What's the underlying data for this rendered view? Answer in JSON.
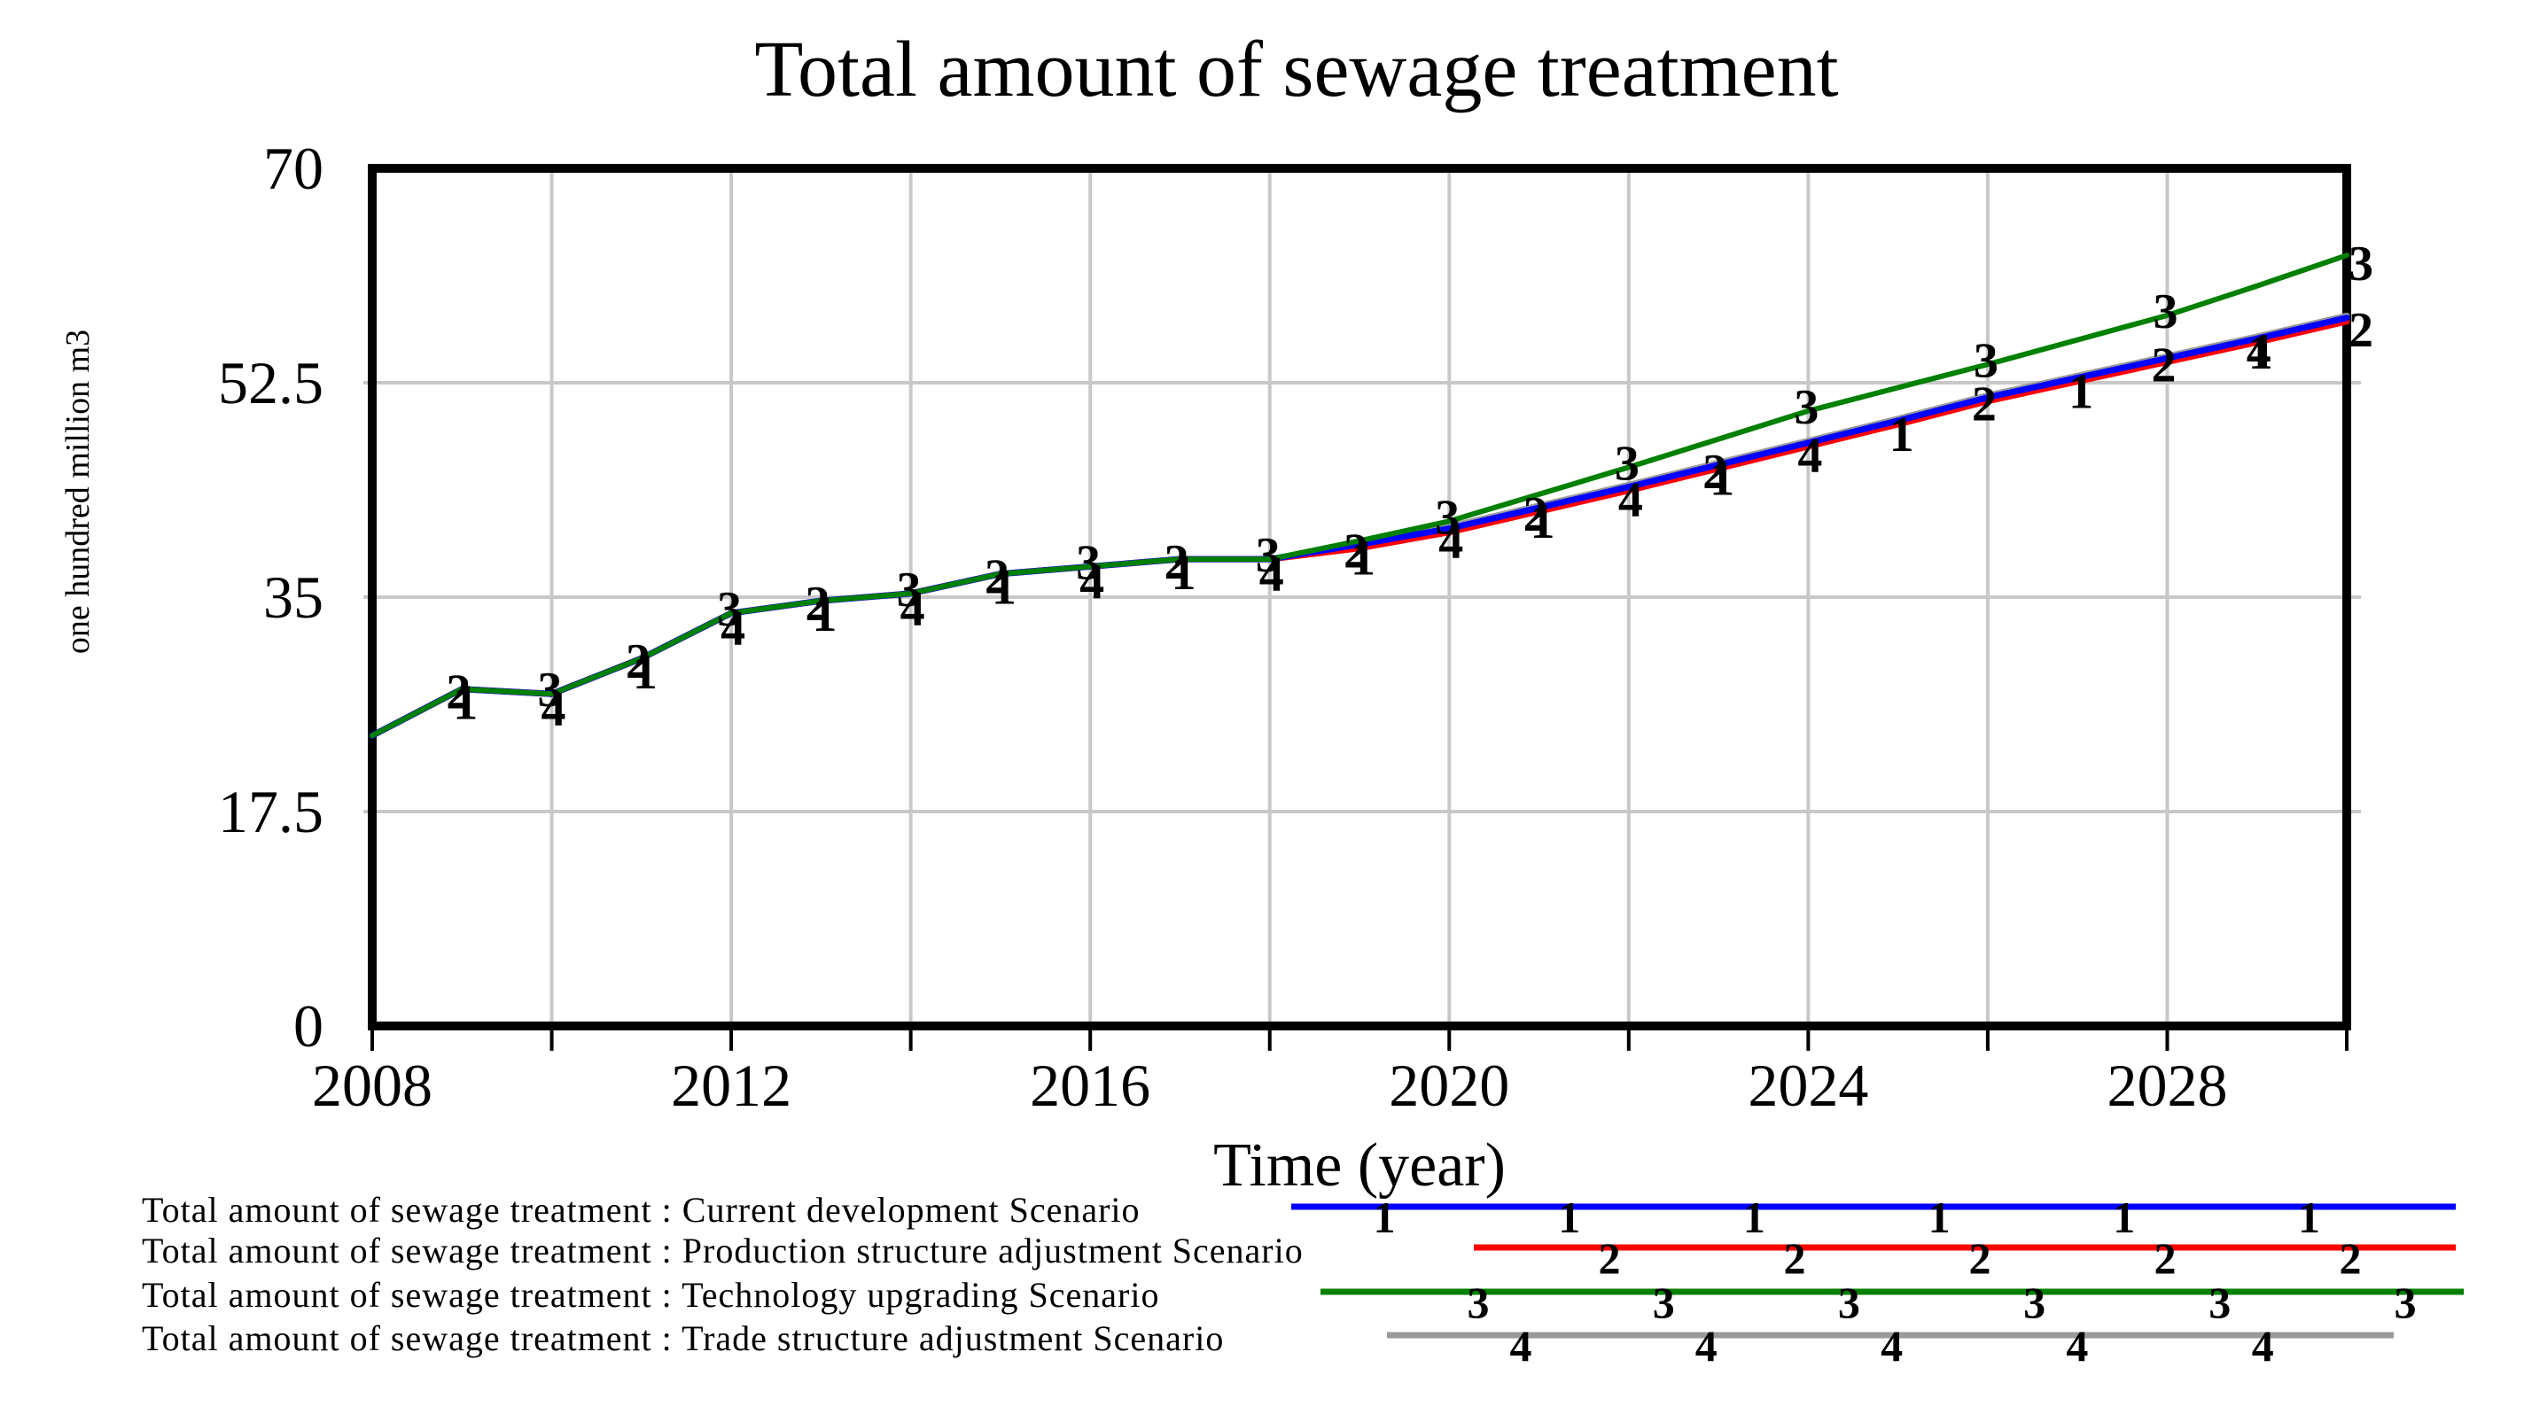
{
  "title": "Total amount of sewage treatment",
  "chart_data": {
    "type": "line",
    "title": "Total amount of sewage treatment",
    "xlabel": "Time (year)",
    "ylabel": "one hundred million m3",
    "xlim": [
      2008,
      2030
    ],
    "ylim": [
      0,
      70
    ],
    "y_ticks": [
      0,
      17.5,
      35,
      52.5,
      70
    ],
    "y_tick_labels": [
      "0",
      "17.5",
      "35",
      "52.5",
      "70"
    ],
    "x_tick_label_years": [
      2008,
      2012,
      2016,
      2020,
      2024,
      2028
    ],
    "x_minor_tick_step": 2,
    "grid": true,
    "legend_position": "bottom-left",
    "x": [
      2008,
      2009,
      2010,
      2011,
      2012,
      2013,
      2014,
      2015,
      2016,
      2017,
      2018,
      2019,
      2020,
      2021,
      2022,
      2023,
      2024,
      2025,
      2026,
      2027,
      2028,
      2029,
      2030
    ],
    "series": [
      {
        "name": "Current development Scenario",
        "legend_label": "Total amount of sewage treatment : Current development Scenario",
        "color": "#0000ff",
        "marker": "1",
        "line_width": 7,
        "legend_marker_count": 6,
        "marker_years": [
          2009,
          2011,
          2013,
          2015,
          2017,
          2019,
          2021,
          2023,
          2025,
          2027,
          2029
        ],
        "values": [
          23.7,
          27.5,
          27.1,
          30.0,
          33.7,
          34.7,
          35.3,
          36.9,
          37.5,
          38.1,
          38.1,
          39.3,
          40.6,
          42.3,
          44.0,
          45.8,
          47.6,
          49.4,
          51.3,
          52.9,
          54.5,
          56.1,
          57.8
        ]
      },
      {
        "name": "Production structure adjustment Scenario",
        "legend_label": "Total amount of sewage treatment : Production structure adjustment Scenario",
        "color": "#ff0000",
        "marker": "2",
        "line_width": 7,
        "legend_marker_count": 5,
        "marker_years": [
          2009,
          2011,
          2013,
          2015,
          2017,
          2019,
          2021,
          2023,
          2026,
          2028,
          2030
        ],
        "values": [
          23.7,
          27.5,
          27.1,
          30.0,
          33.7,
          34.7,
          35.3,
          36.9,
          37.5,
          38.1,
          38.1,
          39.0,
          40.3,
          42.0,
          43.7,
          45.5,
          47.3,
          49.1,
          51.0,
          52.6,
          54.2,
          55.8,
          57.5
        ]
      },
      {
        "name": "Technology upgrading Scenario",
        "legend_label": "Total amount of sewage treatment : Technology upgrading Scenario",
        "color": "#008000",
        "marker": "3",
        "line_width": 6,
        "legend_marker_count": 6,
        "marker_years": [
          2010,
          2012,
          2014,
          2016,
          2018,
          2020,
          2022,
          2024,
          2026,
          2028,
          2030
        ],
        "values": [
          23.7,
          27.5,
          27.1,
          30.0,
          33.7,
          34.7,
          35.3,
          36.9,
          37.5,
          38.1,
          38.1,
          39.6,
          41.2,
          43.4,
          45.6,
          47.9,
          50.2,
          52.1,
          54.0,
          56.0,
          58.0,
          60.4,
          62.9
        ]
      },
      {
        "name": "Trade structure adjustment Scenario",
        "legend_label": "Total amount of sewage treatment : Trade structure adjustment Scenario",
        "color": "#9a9a9a",
        "marker": "4",
        "line_width": 6,
        "legend_marker_count": 5,
        "marker_years": [
          2010,
          2012,
          2014,
          2016,
          2018,
          2020,
          2022,
          2024,
          2029
        ],
        "values": [
          23.7,
          27.5,
          27.1,
          30.0,
          33.7,
          34.7,
          35.3,
          36.9,
          37.5,
          38.1,
          38.1,
          39.5,
          40.8,
          42.5,
          44.2,
          46.0,
          47.8,
          49.6,
          51.5,
          53.1,
          54.7,
          56.3,
          58.0
        ]
      }
    ],
    "colors": {
      "frame": "#000000",
      "gridline": "#c8c8c8",
      "background": "#ffffff"
    }
  }
}
